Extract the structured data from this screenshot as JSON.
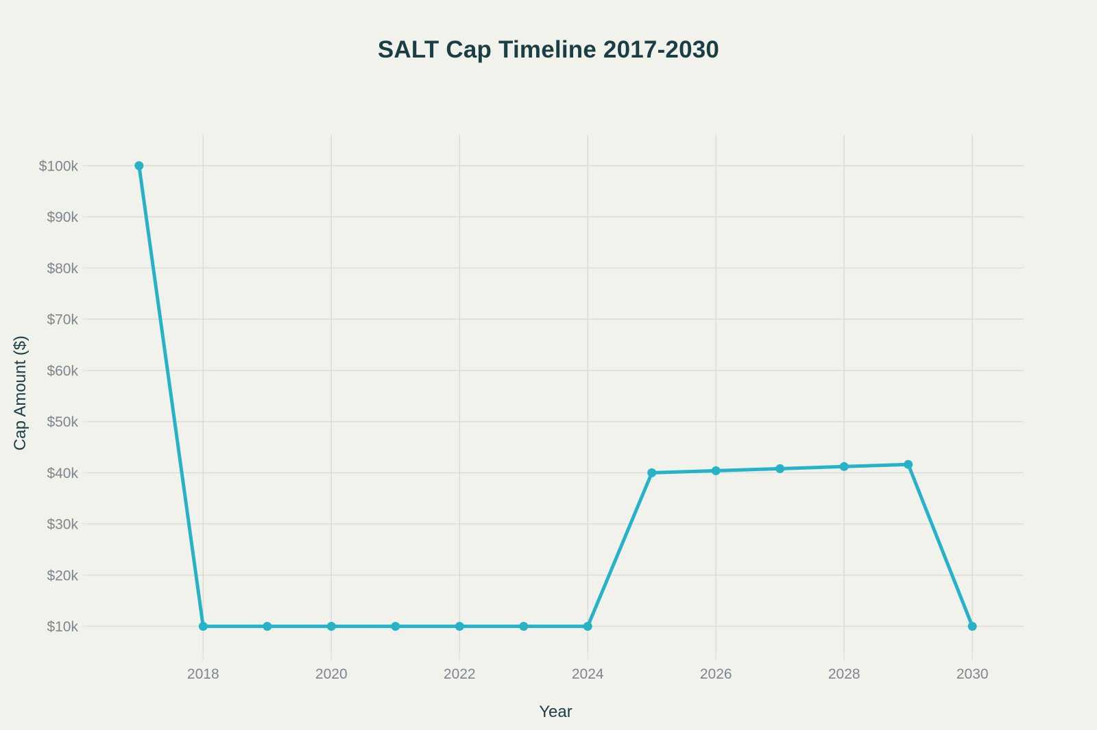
{
  "chart_data": {
    "type": "line",
    "title": "SALT Cap Timeline 2017-2030",
    "xlabel": "Year",
    "ylabel": "Cap Amount ($)",
    "x": [
      2017,
      2018,
      2019,
      2020,
      2021,
      2022,
      2023,
      2024,
      2025,
      2026,
      2027,
      2028,
      2029,
      2030
    ],
    "values": [
      100000,
      10000,
      10000,
      10000,
      10000,
      10000,
      10000,
      10000,
      40000,
      40400,
      40804,
      41212,
      41624,
      10000
    ],
    "x_ticks": [
      {
        "value": 2018,
        "label": "2018"
      },
      {
        "value": 2020,
        "label": "2020"
      },
      {
        "value": 2022,
        "label": "2022"
      },
      {
        "value": 2024,
        "label": "2024"
      },
      {
        "value": 2026,
        "label": "2026"
      },
      {
        "value": 2028,
        "label": "2028"
      },
      {
        "value": 2030,
        "label": "2030"
      }
    ],
    "y_ticks": [
      {
        "value": 10000,
        "label": "$10k"
      },
      {
        "value": 20000,
        "label": "$20k"
      },
      {
        "value": 30000,
        "label": "$30k"
      },
      {
        "value": 40000,
        "label": "$40k"
      },
      {
        "value": 50000,
        "label": "$50k"
      },
      {
        "value": 60000,
        "label": "$60k"
      },
      {
        "value": 70000,
        "label": "$70k"
      },
      {
        "value": 80000,
        "label": "$80k"
      },
      {
        "value": 90000,
        "label": "$90k"
      },
      {
        "value": 100000,
        "label": "$100k"
      }
    ],
    "x_range": [
      2016.2,
      2030.8
    ],
    "y_range": [
      5000,
      106000
    ],
    "grid": true,
    "legend_position": "none",
    "line_color": "#26b2c7",
    "marker_color": "#26b2c7"
  },
  "colors": {
    "background": "#f1f2ec",
    "title_text": "#1b3e44",
    "axis_title_text": "#1b3e44",
    "tick_text": "#7d868d",
    "gridline": "#dbddd5",
    "tick_mark": "#e2e4dc"
  }
}
